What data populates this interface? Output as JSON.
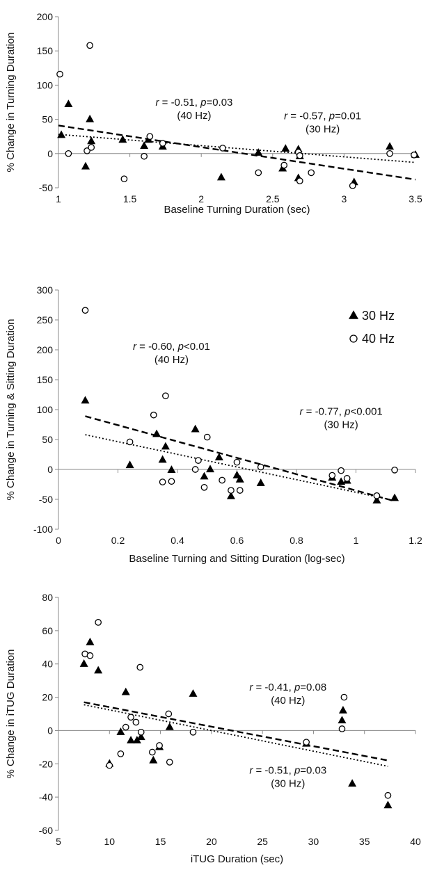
{
  "chart_data": [
    {
      "type": "scatter",
      "xlabel": "Baseline Turning Duration (sec)",
      "ylabel": "% Change in Turning Duration",
      "xlim": [
        1,
        3.5
      ],
      "ylim": [
        -50,
        200
      ],
      "xticks": [
        "1",
        "1.5",
        "2",
        "2.5",
        "3",
        "3.5"
      ],
      "xtick_values": [
        1,
        1.5,
        2,
        2.5,
        3,
        3.5
      ],
      "yticks": [
        "-50",
        "0",
        "50",
        "100",
        "150",
        "200"
      ],
      "ytick_values": [
        -50,
        0,
        50,
        100,
        150,
        200
      ],
      "series": [
        {
          "key": "30hz",
          "marker": "triangle",
          "points": [
            [
              1.02,
              27
            ],
            [
              1.07,
              72
            ],
            [
              1.19,
              -19
            ],
            [
              1.22,
              50
            ],
            [
              1.23,
              18
            ],
            [
              1.45,
              20
            ],
            [
              1.6,
              11
            ],
            [
              1.63,
              20
            ],
            [
              1.73,
              10
            ],
            [
              2.14,
              -35
            ],
            [
              2.4,
              1
            ],
            [
              2.57,
              -22
            ],
            [
              2.59,
              7
            ],
            [
              2.68,
              6
            ],
            [
              2.68,
              -36
            ],
            [
              2.69,
              -4
            ],
            [
              3.07,
              -42
            ],
            [
              3.32,
              10
            ],
            [
              3.5,
              -2
            ]
          ]
        },
        {
          "key": "40hz",
          "marker": "circle",
          "points": [
            [
              1.01,
              116
            ],
            [
              1.07,
              0
            ],
            [
              1.2,
              4
            ],
            [
              1.22,
              158
            ],
            [
              1.23,
              9
            ],
            [
              1.46,
              -37
            ],
            [
              1.6,
              -4
            ],
            [
              1.64,
              25
            ],
            [
              1.73,
              15
            ],
            [
              2.15,
              8
            ],
            [
              2.4,
              -28
            ],
            [
              2.58,
              -17
            ],
            [
              2.68,
              2
            ],
            [
              2.69,
              -3
            ],
            [
              2.69,
              -40
            ],
            [
              2.77,
              -28
            ],
            [
              3.06,
              -47
            ],
            [
              3.32,
              0
            ],
            [
              3.49,
              -2
            ]
          ]
        }
      ],
      "trendlines": [
        {
          "key": "30hz",
          "style": "dashed",
          "x": [
            1,
            3.5
          ],
          "y": [
            41,
            -38
          ]
        },
        {
          "key": "40hz",
          "style": "dotted",
          "x": [
            1,
            3.5
          ],
          "y": [
            28,
            -13
          ]
        }
      ],
      "annotations": [
        {
          "r": "r",
          "stat": " = -0.51, ",
          "p": "p",
          "pval": "=0.03",
          "label": "(40 Hz)",
          "x": 1.95,
          "y": 70
        },
        {
          "r": "r",
          "stat": " = -0.57, ",
          "p": "p",
          "pval": "=0.01",
          "label": "(30 Hz)",
          "x": 2.85,
          "y": 50
        }
      ]
    },
    {
      "type": "scatter",
      "xlabel": "Baseline Turning and Sitting Duration (log-sec)",
      "ylabel": "% Change in Turning & Sitting Duration",
      "xlim": [
        0,
        1.2
      ],
      "ylim": [
        -100,
        300
      ],
      "xticks": [
        "0",
        "0.2",
        "0.4",
        "0.6",
        "0.8",
        "1",
        "1.2"
      ],
      "xtick_values": [
        0,
        0.2,
        0.4,
        0.6,
        0.8,
        1,
        1.2
      ],
      "yticks": [
        "-100",
        "-50",
        "0",
        "50",
        "100",
        "150",
        "200",
        "250",
        "300"
      ],
      "ytick_values": [
        -100,
        -50,
        0,
        50,
        100,
        150,
        200,
        250,
        300
      ],
      "legend": {
        "position": "top-right",
        "items": [
          {
            "key": "30hz",
            "marker": "triangle",
            "label": "30 Hz"
          },
          {
            "key": "40hz",
            "marker": "circle",
            "label": "40 Hz"
          }
        ]
      },
      "series": [
        {
          "key": "30hz",
          "marker": "triangle",
          "points": [
            [
              0.09,
              115
            ],
            [
              0.24,
              7
            ],
            [
              0.33,
              59
            ],
            [
              0.35,
              16
            ],
            [
              0.36,
              38
            ],
            [
              0.38,
              -1
            ],
            [
              0.46,
              67
            ],
            [
              0.49,
              -12
            ],
            [
              0.51,
              0
            ],
            [
              0.54,
              20
            ],
            [
              0.58,
              -45
            ],
            [
              0.6,
              -10
            ],
            [
              0.61,
              -17
            ],
            [
              0.68,
              -23
            ],
            [
              0.92,
              -14
            ],
            [
              0.95,
              -21
            ],
            [
              0.97,
              -19
            ],
            [
              1.07,
              -52
            ],
            [
              1.13,
              -48
            ]
          ]
        },
        {
          "key": "40hz",
          "marker": "circle",
          "points": [
            [
              0.09,
              266
            ],
            [
              0.24,
              46
            ],
            [
              0.32,
              91
            ],
            [
              0.35,
              -21
            ],
            [
              0.36,
              123
            ],
            [
              0.38,
              -20
            ],
            [
              0.46,
              0
            ],
            [
              0.47,
              15
            ],
            [
              0.49,
              -30
            ],
            [
              0.5,
              54
            ],
            [
              0.55,
              -18
            ],
            [
              0.58,
              -35
            ],
            [
              0.6,
              12
            ],
            [
              0.61,
              -35
            ],
            [
              0.68,
              4
            ],
            [
              0.92,
              -10
            ],
            [
              0.95,
              -2
            ],
            [
              0.97,
              -15
            ],
            [
              1.07,
              -44
            ],
            [
              1.13,
              -1
            ]
          ]
        }
      ],
      "trendlines": [
        {
          "key": "30hz",
          "style": "dashed",
          "x": [
            0.09,
            1.13
          ],
          "y": [
            89,
            -53
          ]
        },
        {
          "key": "40hz",
          "style": "dotted",
          "x": [
            0.09,
            1.13
          ],
          "y": [
            58,
            -52
          ]
        }
      ],
      "annotations": [
        {
          "r": "r",
          "stat": " = -0.60, ",
          "p": "p",
          "pval": "<0.01",
          "label": "(40 Hz)",
          "x": 0.38,
          "y": 200
        },
        {
          "r": "r",
          "stat": " = -0.77, ",
          "p": "p",
          "pval": "<0.001",
          "label": "(30 Hz)",
          "x": 0.95,
          "y": 91
        }
      ]
    },
    {
      "type": "scatter",
      "xlabel": "iTUG Duration (sec)",
      "ylabel": "% Change in iTUG Duration",
      "xlim": [
        5,
        40
      ],
      "ylim": [
        -60,
        80
      ],
      "xticks": [
        "5",
        "10",
        "15",
        "20",
        "25",
        "30",
        "35",
        "40"
      ],
      "xtick_values": [
        5,
        10,
        15,
        20,
        25,
        30,
        35,
        40
      ],
      "yticks": [
        "-60",
        "-40",
        "-20",
        "0",
        "20",
        "40",
        "60",
        "80"
      ],
      "ytick_values": [
        -60,
        -40,
        -20,
        0,
        20,
        40,
        60,
        80
      ],
      "series": [
        {
          "key": "30hz",
          "marker": "triangle",
          "points": [
            [
              7.5,
              40
            ],
            [
              8.1,
              53
            ],
            [
              8.9,
              36
            ],
            [
              10,
              -20
            ],
            [
              11.1,
              -1
            ],
            [
              11.6,
              23
            ],
            [
              12.1,
              -6
            ],
            [
              12.7,
              -6
            ],
            [
              13.1,
              -4
            ],
            [
              14.3,
              -18
            ],
            [
              14.9,
              -10
            ],
            [
              15.9,
              2
            ],
            [
              18.2,
              22
            ],
            [
              29.3,
              -8
            ],
            [
              32.8,
              6
            ],
            [
              32.9,
              12
            ],
            [
              33.8,
              -32
            ],
            [
              37.3,
              -45
            ]
          ]
        },
        {
          "key": "40hz",
          "marker": "circle",
          "points": [
            [
              7.6,
              46
            ],
            [
              8.1,
              45
            ],
            [
              8.9,
              65
            ],
            [
              10,
              -21
            ],
            [
              11.1,
              -14
            ],
            [
              11.6,
              2
            ],
            [
              12.1,
              8
            ],
            [
              12.6,
              5
            ],
            [
              13,
              38
            ],
            [
              13.1,
              -1
            ],
            [
              14.2,
              -13
            ],
            [
              14.9,
              -9
            ],
            [
              15.8,
              10
            ],
            [
              15.9,
              -19
            ],
            [
              18.2,
              -1
            ],
            [
              29.3,
              -7
            ],
            [
              32.8,
              1
            ],
            [
              33,
              20
            ],
            [
              37.3,
              -39
            ]
          ]
        }
      ],
      "trendlines": [
        {
          "key": "30hz",
          "style": "dashed",
          "x": [
            7.5,
            37.3
          ],
          "y": [
            17,
            -18
          ]
        },
        {
          "key": "40hz",
          "style": "dotted",
          "x": [
            7.5,
            37.3
          ],
          "y": [
            15.5,
            -21.5
          ]
        }
      ],
      "annotations": [
        {
          "r": "r",
          "stat": " = -0.41, ",
          "p": "p",
          "pval": "=0.08",
          "label": "(40 Hz)",
          "x": 27.5,
          "y": 24
        },
        {
          "r": "r",
          "stat": " = -0.51, ",
          "p": "p",
          "pval": "=0.03",
          "label": "(30 Hz)",
          "x": 27.5,
          "y": -26
        }
      ]
    }
  ]
}
